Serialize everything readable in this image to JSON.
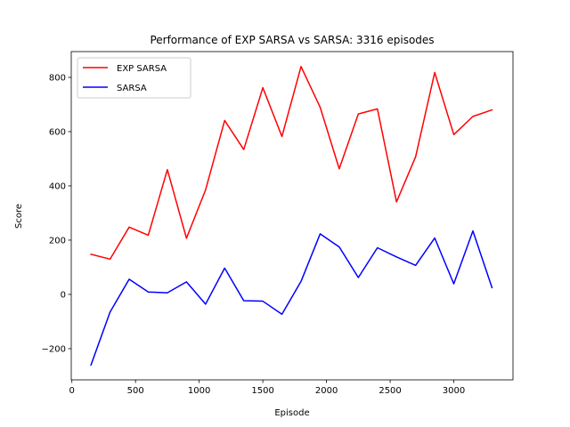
{
  "chart_data": {
    "type": "line",
    "title": "Performance of EXP SARSA vs SARSA: 3316 episodes",
    "xlabel": "Episode",
    "ylabel": "Score",
    "xlim": [
      -5,
      3465
    ],
    "ylim": [
      -315,
      895
    ],
    "xticks": [
      0,
      500,
      1000,
      1500,
      2000,
      2500,
      3000
    ],
    "yticks": [
      -200,
      0,
      200,
      400,
      600,
      800
    ],
    "ytick_labels": [
      "−200",
      "0",
      "200",
      "400",
      "600",
      "800"
    ],
    "grid": false,
    "legend": "top-left",
    "x": [
      150,
      300,
      450,
      600,
      750,
      900,
      1050,
      1200,
      1350,
      1500,
      1650,
      1800,
      1950,
      2100,
      2250,
      2400,
      2550,
      2700,
      2850,
      3000,
      3150,
      3300
    ],
    "series": [
      {
        "name": "EXP SARSA",
        "color": "#ff0000",
        "values": [
          148,
          130,
          248,
          218,
          460,
          207,
          385,
          641,
          534,
          762,
          582,
          840,
          690,
          463,
          665,
          684,
          341,
          507,
          818,
          589,
          656,
          680
        ]
      },
      {
        "name": "SARSA",
        "color": "#0000ff",
        "values": [
          -260,
          -65,
          56,
          9,
          6,
          46,
          -36,
          97,
          -23,
          -25,
          -73,
          48,
          223,
          175,
          62,
          172,
          138,
          107,
          208,
          39,
          234,
          25
        ]
      }
    ]
  }
}
